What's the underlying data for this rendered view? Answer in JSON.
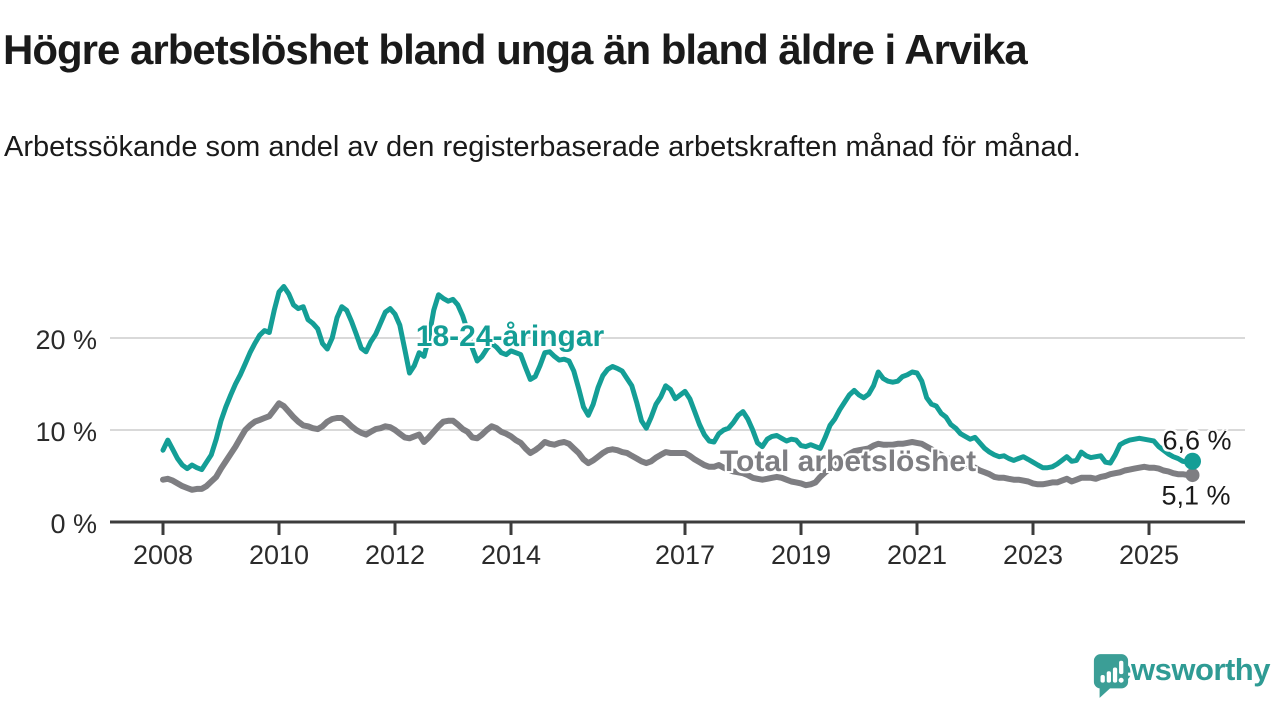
{
  "title": "Högre arbetslöshet bland unga än bland äldre i Arvika",
  "subtitle": "Arbetssökande som andel av den registerbaserade arbetskraften månad för månad.",
  "branding": {
    "logo_text": "Newsworthy",
    "logo_color": "#2f9b94",
    "logo_icon": "speech-bubble-bar-chart"
  },
  "chart_data": {
    "type": "line",
    "title": "Högre arbetslöshet bland unga än bland äldre i Arvika",
    "xlabel": "",
    "ylabel": "Arbetssökande som andel av den registerbaserade arbetskraften",
    "grid": "horizontal",
    "x_axis": {
      "ticks": [
        2008,
        2010,
        2012,
        2014,
        2017,
        2019,
        2021,
        2023,
        2025
      ],
      "range": [
        2007.1,
        2026.7
      ]
    },
    "y_axis": {
      "range": [
        0,
        27
      ],
      "ticks": [
        {
          "value": 0,
          "label": "0 %"
        },
        {
          "value": 10,
          "label": "10 %"
        },
        {
          "value": 20,
          "label": "20 %"
        }
      ]
    },
    "frequency": "monthly",
    "start_year": 2008,
    "series": [
      {
        "name": "18-24-åringar",
        "color": "#149e96",
        "end_label": "6,6 %",
        "last_value": 6.6,
        "values": [
          7.8,
          8.9,
          7.9,
          6.9,
          6.2,
          5.8,
          6.2,
          5.9,
          5.7,
          6.5,
          7.3,
          9.0,
          11.0,
          12.5,
          13.8,
          15.0,
          16.0,
          17.2,
          18.4,
          19.4,
          20.3,
          20.8,
          20.6,
          23.0,
          25.0,
          25.6,
          24.8,
          23.6,
          23.2,
          23.4,
          22.0,
          21.6,
          21.0,
          19.4,
          18.8,
          20.0,
          22.2,
          23.4,
          23.0,
          21.8,
          20.4,
          18.9,
          18.5,
          19.6,
          20.4,
          21.6,
          22.8,
          23.2,
          22.6,
          21.4,
          18.8,
          16.2,
          17.0,
          18.4,
          18.0,
          20.0,
          23.0,
          24.7,
          24.3,
          24.0,
          24.2,
          23.6,
          22.4,
          20.8,
          18.9,
          17.5,
          18.0,
          18.8,
          19.4,
          19.0,
          18.4,
          18.2,
          18.6,
          18.4,
          18.2,
          16.8,
          15.5,
          15.8,
          17.0,
          18.4,
          18.5,
          18.0,
          17.6,
          17.7,
          17.5,
          16.4,
          14.5,
          12.5,
          11.6,
          12.8,
          14.6,
          15.9,
          16.6,
          16.9,
          16.7,
          16.4,
          15.6,
          14.8,
          13.0,
          11.0,
          10.2,
          11.4,
          12.8,
          13.6,
          14.8,
          14.4,
          13.4,
          13.8,
          14.2,
          13.4,
          12.0,
          10.6,
          9.5,
          8.8,
          8.7,
          9.6,
          10.0,
          10.2,
          10.8,
          11.6,
          12.0,
          11.2,
          10.0,
          8.6,
          8.2,
          9.0,
          9.3,
          9.4,
          9.1,
          8.8,
          9.0,
          8.9,
          8.3,
          8.2,
          8.4,
          8.2,
          8.0,
          9.2,
          10.5,
          11.2,
          12.2,
          13.0,
          13.8,
          14.3,
          13.8,
          13.5,
          13.9,
          14.8,
          16.3,
          15.6,
          15.3,
          15.2,
          15.3,
          15.8,
          16.0,
          16.3,
          16.2,
          15.3,
          13.5,
          12.8,
          12.6,
          11.8,
          11.4,
          10.6,
          10.2,
          9.6,
          9.3,
          9.0,
          9.2,
          8.6,
          8.0,
          7.6,
          7.3,
          7.1,
          7.2,
          6.9,
          6.7,
          6.9,
          7.1,
          6.8,
          6.5,
          6.2,
          5.9,
          5.9,
          6.0,
          6.3,
          6.7,
          7.1,
          6.6,
          6.7,
          7.6,
          7.2,
          7.0,
          7.1,
          7.2,
          6.5,
          6.4,
          7.3,
          8.4,
          8.7,
          8.9,
          9.0,
          9.1,
          9.0,
          8.9,
          8.8,
          8.2,
          7.8,
          7.4,
          7.1,
          6.9,
          6.6,
          6.5,
          6.6
        ]
      },
      {
        "name": "Total arbetslöshet",
        "color": "#7e7e82",
        "end_label": "5,1 %",
        "last_value": 5.1,
        "values": [
          4.6,
          4.7,
          4.5,
          4.2,
          3.9,
          3.7,
          3.5,
          3.6,
          3.6,
          3.9,
          4.4,
          4.9,
          5.8,
          6.6,
          7.4,
          8.2,
          9.1,
          10.0,
          10.5,
          10.9,
          11.1,
          11.3,
          11.5,
          12.2,
          12.9,
          12.6,
          12.0,
          11.4,
          10.9,
          10.5,
          10.4,
          10.2,
          10.1,
          10.4,
          10.9,
          11.2,
          11.3,
          11.3,
          10.9,
          10.4,
          10.0,
          9.7,
          9.5,
          9.8,
          10.1,
          10.2,
          10.4,
          10.3,
          10.0,
          9.6,
          9.2,
          9.1,
          9.3,
          9.5,
          8.7,
          9.2,
          9.8,
          10.4,
          10.9,
          11.0,
          11.0,
          10.6,
          10.1,
          9.8,
          9.2,
          9.1,
          9.5,
          10.0,
          10.4,
          10.2,
          9.8,
          9.6,
          9.3,
          8.9,
          8.6,
          8.0,
          7.5,
          7.8,
          8.2,
          8.7,
          8.5,
          8.4,
          8.6,
          8.7,
          8.5,
          8.0,
          7.5,
          6.8,
          6.4,
          6.7,
          7.1,
          7.5,
          7.8,
          7.9,
          7.8,
          7.6,
          7.5,
          7.2,
          6.9,
          6.6,
          6.4,
          6.6,
          7.0,
          7.3,
          7.6,
          7.5,
          7.5,
          7.5,
          7.5,
          7.2,
          6.8,
          6.5,
          6.2,
          6.0,
          6.0,
          6.2,
          5.9,
          5.7,
          5.5,
          5.4,
          5.3,
          5.1,
          4.8,
          4.7,
          4.6,
          4.7,
          4.8,
          4.9,
          4.8,
          4.6,
          4.4,
          4.3,
          4.2,
          4.0,
          4.1,
          4.3,
          4.9,
          5.4,
          5.8,
          6.2,
          6.6,
          7.0,
          7.4,
          7.7,
          7.8,
          7.9,
          8.0,
          8.3,
          8.5,
          8.4,
          8.4,
          8.4,
          8.5,
          8.5,
          8.6,
          8.7,
          8.6,
          8.5,
          8.2,
          7.9,
          7.6,
          7.3,
          7.0,
          6.8,
          6.5,
          6.3,
          6.1,
          6.0,
          5.9,
          5.6,
          5.4,
          5.2,
          4.9,
          4.8,
          4.8,
          4.7,
          4.6,
          4.6,
          4.5,
          4.4,
          4.2,
          4.1,
          4.1,
          4.2,
          4.3,
          4.3,
          4.5,
          4.7,
          4.4,
          4.6,
          4.8,
          4.8,
          4.8,
          4.7,
          4.9,
          5.0,
          5.2,
          5.3,
          5.4,
          5.6,
          5.7,
          5.8,
          5.9,
          6.0,
          5.9,
          5.9,
          5.8,
          5.6,
          5.5,
          5.3,
          5.2,
          5.2,
          5.1,
          5.1
        ]
      }
    ]
  }
}
